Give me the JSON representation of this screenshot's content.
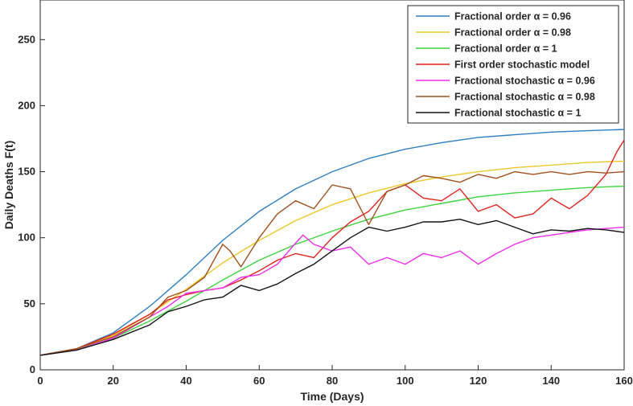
{
  "chart_data": {
    "type": "line",
    "title": "",
    "xlabel": "Time (Days)",
    "ylabel": "Daily Deaths F(t)",
    "xlim": [
      0,
      160
    ],
    "ylim": [
      0,
      280
    ],
    "xticks": [
      0,
      20,
      40,
      60,
      80,
      100,
      120,
      140,
      160
    ],
    "yticks": [
      0,
      50,
      100,
      150,
      200,
      250
    ],
    "grid": false,
    "legend_position": "top-right",
    "series": [
      {
        "name": "Fractional order α = 0.96",
        "color": "#2f7fc1",
        "x": [
          0,
          10,
          20,
          30,
          40,
          50,
          60,
          70,
          80,
          90,
          100,
          110,
          120,
          130,
          140,
          150,
          160
        ],
        "y": [
          11,
          16,
          28,
          48,
          72,
          98,
          120,
          137,
          150,
          160,
          167,
          172,
          176,
          178,
          180,
          181,
          182
        ]
      },
      {
        "name": "Fractional order α = 0.98",
        "color": "#edc92b",
        "x": [
          0,
          10,
          20,
          30,
          40,
          50,
          60,
          70,
          80,
          90,
          100,
          110,
          120,
          130,
          140,
          150,
          160
        ],
        "y": [
          11,
          16,
          26,
          42,
          61,
          81,
          98,
          113,
          125,
          134,
          141,
          146,
          150,
          153,
          155,
          157,
          158
        ]
      },
      {
        "name": "Fractional order α = 1",
        "color": "#3fd43f",
        "x": [
          0,
          10,
          20,
          30,
          40,
          50,
          60,
          70,
          80,
          90,
          100,
          110,
          120,
          130,
          140,
          150,
          160
        ],
        "y": [
          11,
          15,
          24,
          37,
          52,
          68,
          83,
          95,
          105,
          114,
          121,
          126,
          131,
          134,
          136,
          138,
          139
        ]
      },
      {
        "name": "First order stochastic model",
        "color": "#e0241f",
        "x": [
          0,
          10,
          20,
          30,
          35,
          40,
          45,
          50,
          55,
          60,
          65,
          70,
          75,
          80,
          85,
          90,
          95,
          100,
          105,
          110,
          115,
          120,
          125,
          130,
          135,
          140,
          145,
          150,
          155,
          158,
          160
        ],
        "y": [
          11,
          16,
          27,
          42,
          53,
          57,
          60,
          62,
          68,
          75,
          83,
          88,
          85,
          100,
          112,
          120,
          135,
          140,
          130,
          128,
          137,
          120,
          125,
          115,
          118,
          130,
          122,
          132,
          148,
          165,
          174
        ]
      },
      {
        "name": "Fractional stochastic α = 0.96",
        "color": "#ee2dee",
        "x": [
          0,
          10,
          20,
          30,
          35,
          40,
          45,
          50,
          55,
          60,
          65,
          70,
          72,
          75,
          80,
          85,
          90,
          95,
          100,
          105,
          110,
          115,
          120,
          125,
          130,
          135,
          140,
          145,
          150,
          155,
          160
        ],
        "y": [
          11,
          15,
          24,
          40,
          48,
          58,
          60,
          62,
          70,
          72,
          80,
          96,
          102,
          95,
          90,
          93,
          80,
          85,
          80,
          88,
          85,
          90,
          80,
          88,
          95,
          100,
          102,
          104,
          106,
          107,
          108
        ]
      },
      {
        "name": "Fractional stochastic α = 0.98",
        "color": "#a0511f",
        "x": [
          0,
          10,
          20,
          30,
          35,
          40,
          45,
          50,
          52,
          55,
          60,
          65,
          70,
          75,
          80,
          85,
          90,
          95,
          100,
          105,
          110,
          115,
          120,
          125,
          130,
          135,
          140,
          145,
          150,
          155,
          160
        ],
        "y": [
          11,
          16,
          25,
          40,
          55,
          60,
          70,
          95,
          90,
          78,
          100,
          118,
          128,
          122,
          140,
          137,
          110,
          135,
          140,
          147,
          145,
          142,
          148,
          145,
          150,
          148,
          150,
          148,
          150,
          149,
          150
        ]
      },
      {
        "name": "Fractional stochastic α = 1",
        "color": "#151515",
        "x": [
          0,
          10,
          20,
          30,
          35,
          40,
          45,
          50,
          55,
          60,
          65,
          70,
          75,
          80,
          85,
          90,
          95,
          100,
          105,
          110,
          115,
          120,
          125,
          130,
          135,
          140,
          145,
          150,
          155,
          160
        ],
        "y": [
          11,
          15,
          23,
          34,
          44,
          48,
          53,
          55,
          64,
          60,
          65,
          73,
          80,
          90,
          100,
          108,
          105,
          108,
          112,
          112,
          114,
          110,
          113,
          108,
          103,
          106,
          105,
          107,
          106,
          104
        ]
      }
    ]
  }
}
